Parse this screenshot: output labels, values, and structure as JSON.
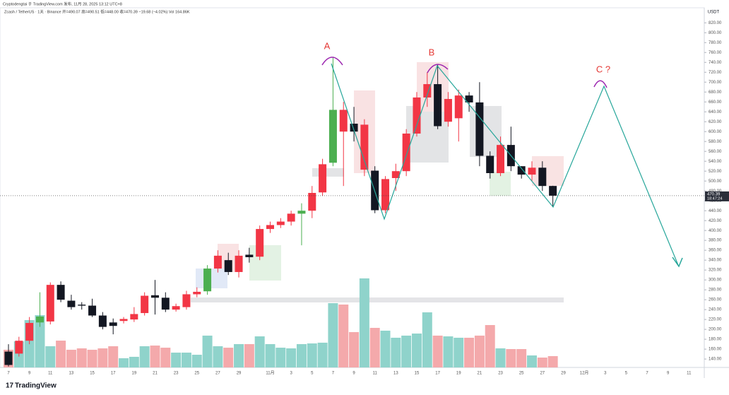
{
  "header": {
    "author_line": "Cryptodengtai 于 TradingView.com 发布, 11月 28, 2025 13:12 UTC+8",
    "symbol_line": "Zcash / TetherUS · 1天 · Binance  开=490.07  高=490.51  低=448.00  收=470.39  −19.68 (−4.02%)  Vol 164.86K",
    "currency": "USDT",
    "countdown": "18:47:24",
    "logo": "TradingView"
  },
  "chart_data": {
    "type": "candlestick",
    "annotations": [
      "A",
      "B",
      "C ?"
    ],
    "categories": [
      "7",
      null,
      "9",
      null,
      "11",
      null,
      "13",
      null,
      "15",
      null,
      "17",
      null,
      "19",
      null,
      "21",
      null,
      "23",
      null,
      "25",
      null,
      "27",
      null,
      "29",
      null,
      null,
      "11月",
      null,
      "3",
      null,
      "5",
      null,
      "7",
      null,
      "9",
      null,
      "11",
      null,
      "13",
      null,
      "15",
      null,
      "17",
      null,
      "19",
      null,
      "21",
      null,
      "23",
      null,
      "25",
      null,
      "27",
      null,
      "29",
      null,
      "12月",
      null,
      "3",
      null,
      "5",
      null,
      "7",
      null,
      "9",
      null,
      "11"
    ],
    "open": [
      155,
      151,
      177,
      214,
      216,
      290,
      258,
      250,
      248,
      228,
      214,
      217,
      220,
      233,
      269,
      264,
      240,
      245,
      271,
      277,
      323,
      340,
      316,
      351,
      347,
      403,
      411,
      418,
      434,
      440,
      477,
      537,
      644,
      616,
      523,
      521,
      441,
      506,
      520,
      596,
      669,
      696,
      620,
      627,
      673,
      659,
      551,
      516,
      573,
      530,
      513,
      527,
      490.07,
      null,
      null,
      null,
      null,
      null,
      null,
      null,
      null,
      null,
      null,
      null,
      null,
      null
    ],
    "high": [
      170,
      185,
      225,
      275,
      295,
      297,
      270,
      255,
      262,
      235,
      222,
      225,
      245,
      275,
      300,
      275,
      252,
      278,
      285,
      330,
      360,
      355,
      360,
      365,
      410,
      418,
      425,
      440,
      455,
      490,
      545,
      750,
      660,
      650,
      625,
      530,
      510,
      535,
      605,
      680,
      720,
      735,
      680,
      685,
      680,
      700,
      560,
      590,
      610,
      530,
      540,
      540,
      490.51,
      null,
      null,
      null,
      null,
      null,
      null,
      null,
      null,
      null,
      null,
      null,
      null,
      null
    ],
    "low": [
      125,
      145,
      170,
      205,
      210,
      255,
      240,
      240,
      225,
      200,
      190,
      212,
      215,
      228,
      230,
      235,
      236,
      240,
      265,
      270,
      315,
      310,
      305,
      335,
      340,
      395,
      405,
      410,
      370,
      425,
      470,
      530,
      490,
      580,
      510,
      435,
      435,
      480,
      510,
      590,
      650,
      605,
      610,
      580,
      640,
      530,
      505,
      510,
      520,
      505,
      500,
      480,
      448,
      null,
      null,
      null,
      null,
      null,
      null,
      null,
      null,
      null,
      null,
      null,
      null,
      null
    ],
    "close": [
      128,
      177,
      213,
      226,
      290,
      260,
      245,
      248,
      228,
      205,
      207,
      221,
      231,
      268,
      264,
      240,
      247,
      271,
      276,
      323,
      349,
      316,
      349,
      346,
      403,
      411,
      418,
      434,
      440,
      476,
      534,
      644,
      600,
      600,
      614,
      441,
      504,
      520,
      596,
      669,
      696,
      611,
      666,
      673,
      659,
      551,
      516,
      573,
      530,
      513,
      527,
      490,
      470.39,
      null,
      null,
      null,
      null,
      null,
      null,
      null,
      null,
      null,
      null,
      null,
      null,
      null
    ],
    "candle_colors": [
      "#131722",
      "#f23645",
      "#f23645",
      "#4caf50",
      "#f23645",
      "#131722",
      "#131722",
      "#131722",
      "#131722",
      "#131722",
      "#131722",
      "#f23645",
      "#f23645",
      "#f23645",
      "#131722",
      "#131722",
      "#f23645",
      "#f23645",
      "#f23645",
      "#4caf50",
      "#f23645",
      "#131722",
      "#f23645",
      "#131722",
      "#f23645",
      "#f23645",
      "#f23645",
      "#f23645",
      "#4caf50",
      "#f23645",
      "#f23645",
      "#4caf50",
      "#f23645",
      "#131722",
      "#f23645",
      "#131722",
      "#f23645",
      "#f23645",
      "#f23645",
      "#f23645",
      "#f23645",
      "#131722",
      "#f23645",
      "#f23645",
      "#131722",
      "#131722",
      "#131722",
      "#f23645",
      "#131722",
      "#131722",
      "#f23645",
      "#131722",
      "#131722",
      null,
      null,
      null,
      null,
      null,
      null,
      null,
      null,
      null,
      null,
      null,
      null,
      null
    ],
    "volume": [
      258,
      381,
      690,
      762,
      309,
      391,
      258,
      278,
      258,
      278,
      309,
      134,
      155,
      309,
      319,
      288,
      216,
      216,
      185,
      464,
      309,
      288,
      340,
      340,
      453,
      340,
      288,
      278,
      340,
      350,
      361,
      937,
      917,
      515,
      1298,
      577,
      536,
      433,
      464,
      494,
      803,
      464,
      453,
      433,
      433,
      464,
      618,
      278,
      268,
      268,
      175,
      144,
      164.86,
      null,
      null,
      null,
      null,
      null,
      null,
      null,
      null,
      null,
      null,
      null,
      null,
      null
    ],
    "volume_up_color": "#8fd3cb",
    "volume_down_color": "#f4a9ab",
    "ylim": [
      123,
      849
    ],
    "yticks": [
      {
        "value": 140,
        "label": "140.00"
      },
      {
        "value": 160,
        "label": "160.00"
      },
      {
        "value": 180,
        "label": "180.00"
      },
      {
        "value": 200,
        "label": "200.00"
      },
      {
        "value": 220,
        "label": "220.00"
      },
      {
        "value": 240,
        "label": "240.00"
      },
      {
        "value": 260,
        "label": "260.00"
      },
      {
        "value": 280,
        "label": "280.00"
      },
      {
        "value": 300,
        "label": "300.00"
      },
      {
        "value": 320,
        "label": "320.00"
      },
      {
        "value": 340,
        "label": "340.00"
      },
      {
        "value": 360,
        "label": "360.00"
      },
      {
        "value": 380,
        "label": "380.00"
      },
      {
        "value": 400,
        "label": "400.00"
      },
      {
        "value": 420,
        "label": "420.00"
      },
      {
        "value": 440,
        "label": "440.00"
      },
      {
        "value": 460,
        "label": "460.00"
      },
      {
        "value": 480,
        "label": "480.00"
      },
      {
        "value": 500,
        "label": "500.00"
      },
      {
        "value": 520,
        "label": "520.00"
      },
      {
        "value": 540,
        "label": "540.00"
      },
      {
        "value": 560,
        "label": "560.00"
      },
      {
        "value": 580,
        "label": "580.00"
      },
      {
        "value": 600,
        "label": "600.00"
      },
      {
        "value": 620,
        "label": "620.00"
      },
      {
        "value": 640,
        "label": "640.00"
      },
      {
        "value": 660,
        "label": "660.00"
      },
      {
        "value": 680,
        "label": "680.00"
      },
      {
        "value": 700,
        "label": "700.00"
      },
      {
        "value": 720,
        "label": "720.00"
      },
      {
        "value": 740,
        "label": "740.00"
      },
      {
        "value": 760,
        "label": "760.00"
      },
      {
        "value": 780,
        "label": "780.00"
      },
      {
        "value": 800,
        "label": "800.00"
      },
      {
        "value": 820,
        "label": "820.00"
      }
    ]
  }
}
